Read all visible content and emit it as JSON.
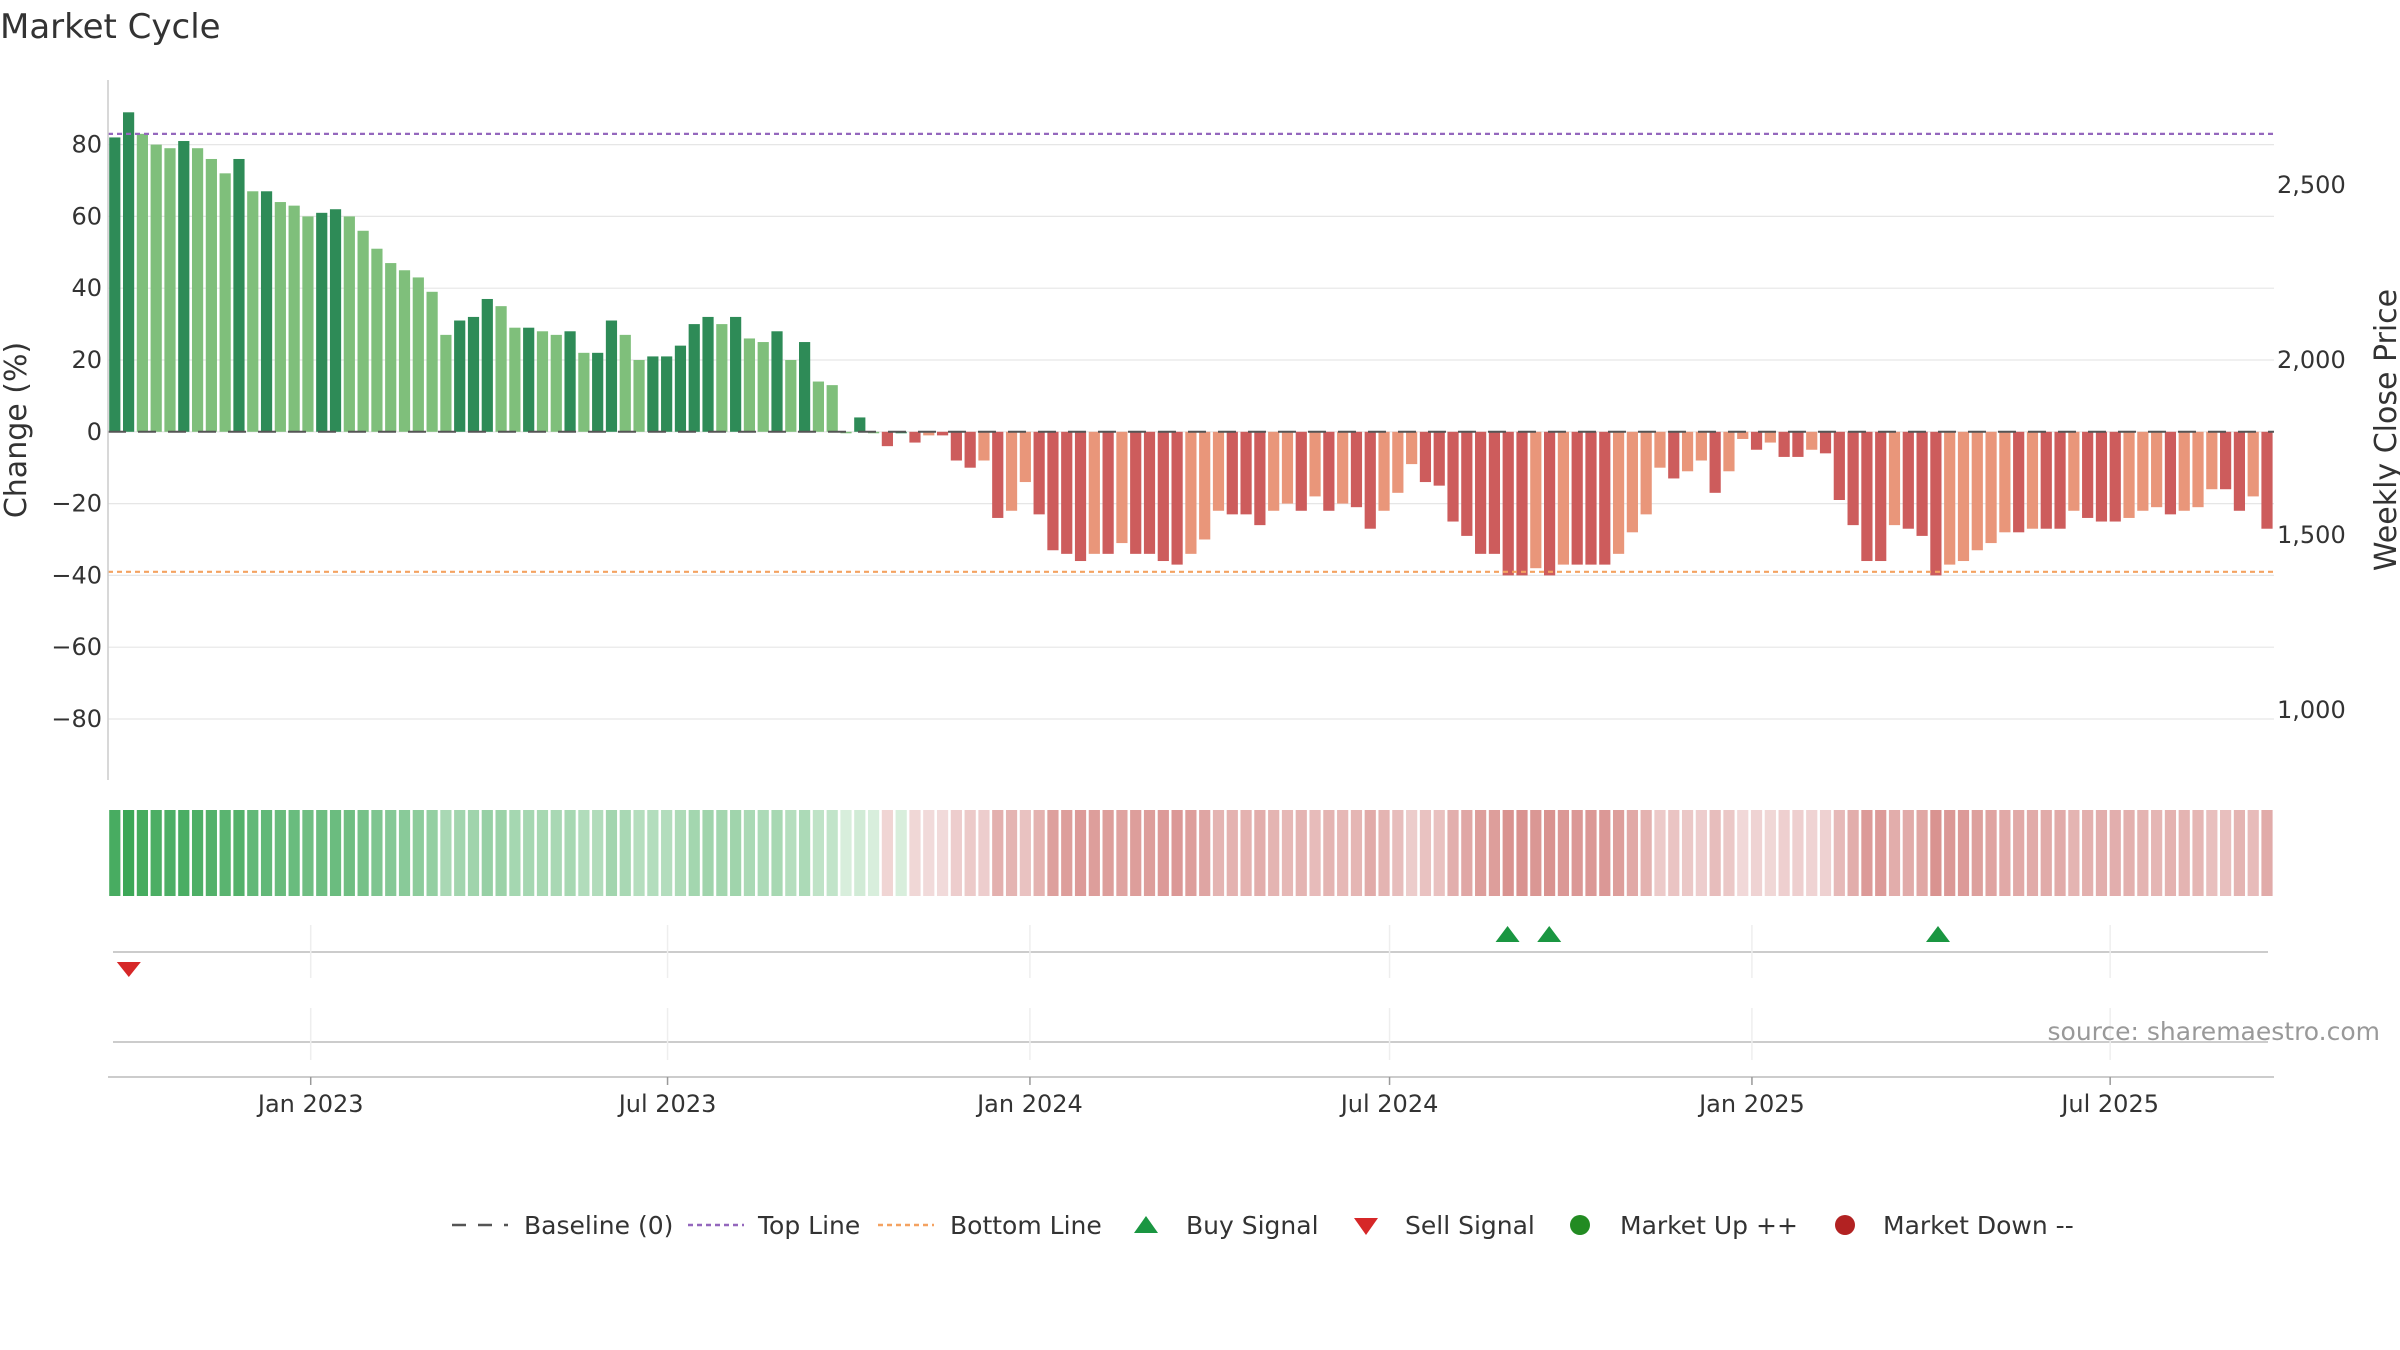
{
  "chart_data": {
    "type": "bar",
    "title": "Market Cycle",
    "ylabel_left": "Change (%)",
    "ylabel_right": "Weekly Close Price",
    "ylim_left": [
      -97,
      98
    ],
    "ylim_right": [
      800,
      2800
    ],
    "yticks_left": [
      "80",
      "60",
      "40",
      "20",
      "0",
      "−20",
      "−40",
      "−60",
      "−80"
    ],
    "yticks_left_values": [
      80,
      60,
      40,
      20,
      0,
      -20,
      -40,
      -60,
      -80
    ],
    "yticks_right": [
      "2,500",
      "2,000",
      "1,500",
      "1,000"
    ],
    "yticks_right_values": [
      2500,
      2000,
      1500,
      1000
    ],
    "top_line": 83,
    "bottom_line": -39,
    "baseline": 0,
    "x_start_week": 0,
    "x_end_week": 156,
    "xticks": [
      {
        "label": "Jan 2023",
        "week": 14.6
      },
      {
        "label": "Jul 2023",
        "week": 40.3
      },
      {
        "label": "Jan 2024",
        "week": 66.4
      },
      {
        "label": "Jul 2024",
        "week": 92.3
      },
      {
        "label": "Jan 2025",
        "week": 118.4
      },
      {
        "label": "Jul 2025",
        "week": 144.2
      }
    ],
    "values": [
      82,
      89,
      83,
      80,
      79,
      81,
      79,
      76,
      72,
      76,
      67,
      67,
      64,
      63,
      60,
      61,
      62,
      60,
      56,
      51,
      47,
      45,
      43,
      39,
      27,
      31,
      32,
      37,
      35,
      29,
      29,
      28,
      27,
      28,
      22,
      22,
      31,
      27,
      20,
      21,
      21,
      24,
      30,
      32,
      30,
      32,
      26,
      25,
      28,
      20,
      25,
      14,
      13,
      0,
      4,
      0,
      -4,
      0,
      -3,
      -1,
      -1,
      -8,
      -10,
      -8,
      -24,
      -22,
      -14,
      -23,
      -33,
      -34,
      -36,
      -34,
      -34,
      -31,
      -34,
      -34,
      -36,
      -37,
      -34,
      -30,
      -22,
      -23,
      -23,
      -26,
      -22,
      -20,
      -22,
      -18,
      -22,
      -20,
      -21,
      -27,
      -22,
      -17,
      -9,
      -14,
      -15,
      -25,
      -29,
      -34,
      -34,
      -40,
      -40,
      -38,
      -40,
      -37,
      -37,
      -37,
      -37,
      -34,
      -28,
      -23,
      -10,
      -13,
      -11,
      -8,
      -17,
      -11,
      -2,
      -5,
      -3,
      -7,
      -7,
      -5,
      -6,
      -19,
      -26,
      -36,
      -36,
      -26,
      -27,
      -29,
      -40,
      -37,
      -36,
      -33,
      -31,
      -28,
      -28,
      -27,
      -27,
      -27,
      -22,
      -24,
      -25,
      -25,
      -24,
      -22,
      -21,
      -23,
      -22,
      -21,
      -16,
      -16,
      -22,
      -18,
      -27
    ],
    "buy_signal_weeks": [
      100.8,
      103.8,
      131.8
    ],
    "sell_signal_weeks": [
      1.5
    ],
    "source": "source: sharemaestro.com",
    "legend": [
      "Baseline (0)",
      "Top Line",
      "Bottom Line",
      "Buy Signal",
      "Sell Signal",
      "Market Up ++",
      "Market Down --"
    ],
    "colors": {
      "bar_up_dark": "#2e8b57",
      "bar_up_light": "#7fbf7b",
      "bar_down_dark": "#cd5c5c",
      "bar_down_light": "#e9967a",
      "top_line": "#9467bd",
      "bottom_line": "#f4a261",
      "baseline": "#555555",
      "buy": "#1a9641",
      "sell": "#d62728",
      "market_up": "#228b22",
      "market_down": "#b22222",
      "grid": "#e6e6e6"
    }
  }
}
